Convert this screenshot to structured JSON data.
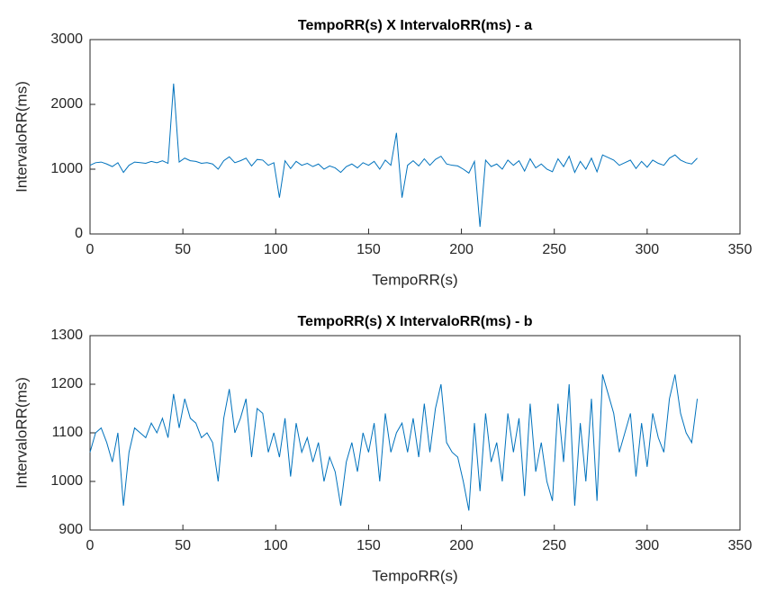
{
  "chart_data": [
    {
      "type": "line",
      "title": "TempoRR(s) X IntervaloRR(ms) - a",
      "xlabel": "TempoRR(s)",
      "ylabel": "IntervaloRR(ms)",
      "xlim": [
        0,
        350
      ],
      "xticks": [
        0,
        50,
        100,
        150,
        200,
        250,
        300,
        350
      ],
      "ylim": [
        0,
        3000
      ],
      "yticks": [
        0,
        1000,
        2000,
        3000
      ],
      "series": [
        {
          "color": "#0072bd",
          "x": [
            0,
            3,
            6,
            9,
            12,
            15,
            18,
            21,
            24,
            27,
            30,
            33,
            36,
            39,
            42,
            45,
            48,
            51,
            54,
            57,
            60,
            63,
            66,
            69,
            72,
            75,
            78,
            81,
            84,
            87,
            90,
            93,
            96,
            99,
            102,
            105,
            108,
            111,
            114,
            117,
            120,
            123,
            126,
            129,
            132,
            135,
            138,
            141,
            144,
            147,
            150,
            153,
            156,
            159,
            162,
            165,
            168,
            171,
            174,
            177,
            180,
            183,
            186,
            189,
            192,
            195,
            198,
            201,
            204,
            207,
            210,
            213,
            216,
            219,
            222,
            225,
            228,
            231,
            234,
            237,
            240,
            243,
            246,
            249,
            252,
            255,
            258,
            261,
            264,
            267,
            270,
            273,
            276,
            279,
            282,
            285,
            288,
            291,
            294,
            297,
            300,
            303,
            306,
            309,
            312,
            315,
            318,
            321,
            324,
            327
          ],
          "values": [
            1060,
            1100,
            1110,
            1080,
            1040,
            1100,
            950,
            1060,
            1110,
            1100,
            1090,
            1120,
            1100,
            1130,
            1090,
            2320,
            1110,
            1170,
            1130,
            1120,
            1090,
            1100,
            1080,
            1000,
            1130,
            1190,
            1100,
            1130,
            1170,
            1050,
            1150,
            1140,
            1060,
            1100,
            560,
            1130,
            1010,
            1120,
            1060,
            1090,
            1040,
            1080,
            1000,
            1050,
            1020,
            950,
            1040,
            1080,
            1020,
            1100,
            1060,
            1120,
            1000,
            1140,
            1060,
            1560,
            560,
            1060,
            1130,
            1050,
            1160,
            1060,
            1150,
            1200,
            1080,
            1060,
            1050,
            1000,
            940,
            1120,
            110,
            1140,
            1040,
            1080,
            1000,
            1140,
            1060,
            1130,
            970,
            1160,
            1020,
            1080,
            1000,
            960,
            1160,
            1040,
            1200,
            950,
            1120,
            1000,
            1170,
            960,
            1220,
            1180,
            1140,
            1060,
            1100,
            1140,
            1010,
            1120,
            1030,
            1140,
            1090,
            1060,
            1170,
            1220,
            1140,
            1100,
            1080,
            1170
          ]
        }
      ]
    },
    {
      "type": "line",
      "title": "TempoRR(s) X IntervaloRR(ms) - b",
      "xlabel": "TempoRR(s)",
      "ylabel": "IntervaloRR(ms)",
      "xlim": [
        0,
        350
      ],
      "xticks": [
        0,
        50,
        100,
        150,
        200,
        250,
        300,
        350
      ],
      "ylim": [
        900,
        1300
      ],
      "yticks": [
        900,
        1000,
        1100,
        1200,
        1300
      ],
      "series": [
        {
          "color": "#0072bd",
          "x": [
            0,
            3,
            6,
            9,
            12,
            15,
            18,
            21,
            24,
            27,
            30,
            33,
            36,
            39,
            42,
            45,
            48,
            51,
            54,
            57,
            60,
            63,
            66,
            69,
            72,
            75,
            78,
            81,
            84,
            87,
            90,
            93,
            96,
            99,
            102,
            105,
            108,
            111,
            114,
            117,
            120,
            123,
            126,
            129,
            132,
            135,
            138,
            141,
            144,
            147,
            150,
            153,
            156,
            159,
            162,
            165,
            168,
            171,
            174,
            177,
            180,
            183,
            186,
            189,
            192,
            195,
            198,
            201,
            204,
            207,
            210,
            213,
            216,
            219,
            222,
            225,
            228,
            231,
            234,
            237,
            240,
            243,
            246,
            249,
            252,
            255,
            258,
            261,
            264,
            267,
            270,
            273,
            276,
            279,
            282,
            285,
            288,
            291,
            294,
            297,
            300,
            303,
            306,
            309,
            312,
            315,
            318,
            321,
            324,
            327
          ],
          "values": [
            1060,
            1100,
            1110,
            1080,
            1040,
            1100,
            950,
            1060,
            1110,
            1100,
            1090,
            1120,
            1100,
            1130,
            1090,
            1180,
            1110,
            1170,
            1130,
            1120,
            1090,
            1100,
            1080,
            1000,
            1130,
            1190,
            1100,
            1130,
            1170,
            1050,
            1150,
            1140,
            1060,
            1100,
            1050,
            1130,
            1010,
            1120,
            1060,
            1090,
            1040,
            1080,
            1000,
            1050,
            1020,
            950,
            1040,
            1080,
            1020,
            1100,
            1060,
            1120,
            1000,
            1140,
            1060,
            1100,
            1120,
            1060,
            1130,
            1050,
            1160,
            1060,
            1150,
            1200,
            1080,
            1060,
            1050,
            1000,
            940,
            1120,
            980,
            1140,
            1040,
            1080,
            1000,
            1140,
            1060,
            1130,
            970,
            1160,
            1020,
            1080,
            1000,
            960,
            1160,
            1040,
            1200,
            950,
            1120,
            1000,
            1170,
            960,
            1220,
            1180,
            1140,
            1060,
            1100,
            1140,
            1010,
            1120,
            1030,
            1140,
            1090,
            1060,
            1170,
            1220,
            1140,
            1100,
            1080,
            1170
          ]
        }
      ]
    }
  ]
}
